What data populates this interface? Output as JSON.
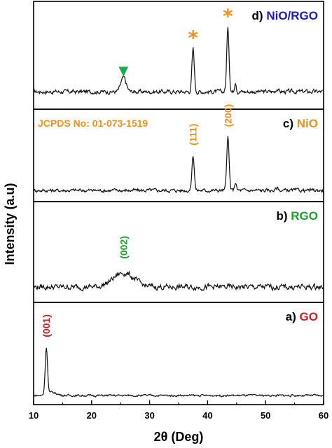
{
  "chart_data": {
    "type": "line",
    "xlabel": "2θ (Deg)",
    "ylabel": "Intensity (a.u)",
    "xlim": [
      10,
      60
    ],
    "xticks": [
      10,
      20,
      30,
      40,
      50,
      60
    ],
    "xtick_labels": [
      "10",
      "20",
      "30",
      "40",
      "50",
      "60"
    ],
    "note": "JCPDS No: 01-073-1519",
    "panels": [
      {
        "id": "d",
        "prefix": "d)",
        "name": "NiO/RGO",
        "name_color": "#1a1ac8",
        "peaks": [
          {
            "x": 25.5,
            "height": 0.13,
            "width": 0.45
          },
          {
            "x": 37.5,
            "height": 0.4,
            "width": 0.2
          },
          {
            "x": 43.5,
            "height": 0.6,
            "width": 0.2
          },
          {
            "x": 44.8,
            "height": 0.1,
            "width": 0.15
          },
          {
            "x": 52.0,
            "height": 0.03,
            "width": 0.2
          }
        ],
        "noise": 0.035,
        "markers": [
          {
            "x": 25.5,
            "symbol": "▼",
            "color": "#1fa850"
          },
          {
            "x": 37.5,
            "symbol": "*",
            "color": "#f0901e"
          },
          {
            "x": 43.5,
            "symbol": "*",
            "color": "#f0901e"
          }
        ],
        "labels": []
      },
      {
        "id": "c",
        "prefix": "c)",
        "name": "NiO",
        "name_color": "#f0901e",
        "peaks": [
          {
            "x": 37.5,
            "height": 0.38,
            "width": 0.2
          },
          {
            "x": 43.5,
            "height": 0.58,
            "width": 0.2
          },
          {
            "x": 44.8,
            "height": 0.09,
            "width": 0.15
          },
          {
            "x": 52.0,
            "height": 0.03,
            "width": 0.2
          }
        ],
        "noise": 0.035,
        "markers": [],
        "labels": [
          {
            "x": 37.5,
            "text": "(111)",
            "color": "#f0901e"
          },
          {
            "x": 43.5,
            "text": "(200)",
            "color": "#f0901e"
          }
        ]
      },
      {
        "id": "b",
        "prefix": "b)",
        "name": "RGO",
        "name_color": "#1fa030",
        "peaks": [
          {
            "x": 25.5,
            "height": 0.14,
            "width": 1.8
          }
        ],
        "noise": 0.05,
        "markers": [],
        "labels": [
          {
            "x": 25.5,
            "text": "(002)",
            "color": "#1fa030"
          }
        ]
      },
      {
        "id": "a",
        "prefix": "a)",
        "name": "GO",
        "name_color": "#cc1f1f",
        "peaks": [
          {
            "x": 12.2,
            "height": 0.46,
            "width": 0.2
          },
          {
            "x": 13.2,
            "height": 0.03,
            "width": 0.8
          }
        ],
        "noise": 0.018,
        "markers": [],
        "labels": [
          {
            "x": 12.2,
            "text": "(001)",
            "color": "#cc1f1f"
          }
        ]
      }
    ]
  }
}
